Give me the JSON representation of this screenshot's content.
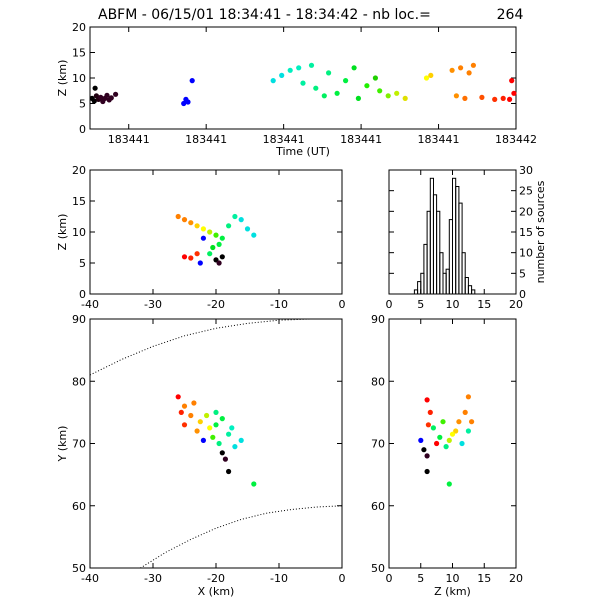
{
  "header": {
    "title": "ABFM - 06/15/01 18:34:41 - 18:34:42 - nb loc.=",
    "count": "264"
  },
  "chart_data": [
    {
      "id": "time-panel",
      "type": "scatter",
      "xlabel": "Time (UT)",
      "ylabel": "Z (km)",
      "ylim": [
        0,
        20
      ],
      "yticks": [
        "0",
        "5",
        "10",
        "15",
        "20"
      ],
      "xticks": [
        "183441",
        "183441",
        "183441",
        "183441",
        "183441",
        "183442"
      ],
      "points": [
        {
          "x": 0.005,
          "y": 6.0,
          "c": "#000000"
        },
        {
          "x": 0.01,
          "y": 5.5,
          "c": "#000000"
        },
        {
          "x": 0.015,
          "y": 6.5,
          "c": "#200010"
        },
        {
          "x": 0.02,
          "y": 5.8,
          "c": "#200010"
        },
        {
          "x": 0.025,
          "y": 6.2,
          "c": "#300020"
        },
        {
          "x": 0.03,
          "y": 5.4,
          "c": "#300020"
        },
        {
          "x": 0.035,
          "y": 6.0,
          "c": "#300020"
        },
        {
          "x": 0.04,
          "y": 6.6,
          "c": "#300020"
        },
        {
          "x": 0.045,
          "y": 5.7,
          "c": "#300020"
        },
        {
          "x": 0.05,
          "y": 6.1,
          "c": "#300020"
        },
        {
          "x": 0.012,
          "y": 8.0,
          "c": "#000000"
        },
        {
          "x": 0.06,
          "y": 6.8,
          "c": "#300020"
        },
        {
          "x": 0.22,
          "y": 5.0,
          "c": "#0000ff"
        },
        {
          "x": 0.225,
          "y": 5.8,
          "c": "#0000ff"
        },
        {
          "x": 0.23,
          "y": 5.3,
          "c": "#0000ff"
        },
        {
          "x": 0.24,
          "y": 9.5,
          "c": "#0000ff"
        },
        {
          "x": 0.43,
          "y": 9.5,
          "c": "#00e0e0"
        },
        {
          "x": 0.45,
          "y": 10.5,
          "c": "#00e0e0"
        },
        {
          "x": 0.47,
          "y": 11.5,
          "c": "#00f0c0"
        },
        {
          "x": 0.49,
          "y": 12.0,
          "c": "#00f0c0"
        },
        {
          "x": 0.5,
          "y": 9.0,
          "c": "#00f0a0"
        },
        {
          "x": 0.52,
          "y": 12.5,
          "c": "#00f0a0"
        },
        {
          "x": 0.53,
          "y": 8.0,
          "c": "#00f080"
        },
        {
          "x": 0.55,
          "y": 6.5,
          "c": "#00f060"
        },
        {
          "x": 0.56,
          "y": 11.0,
          "c": "#00f080"
        },
        {
          "x": 0.58,
          "y": 7.0,
          "c": "#00f040"
        },
        {
          "x": 0.6,
          "y": 9.5,
          "c": "#00f040"
        },
        {
          "x": 0.62,
          "y": 12.0,
          "c": "#00e020"
        },
        {
          "x": 0.63,
          "y": 6.0,
          "c": "#00e020"
        },
        {
          "x": 0.65,
          "y": 8.5,
          "c": "#20f000"
        },
        {
          "x": 0.67,
          "y": 10.0,
          "c": "#20d000"
        },
        {
          "x": 0.68,
          "y": 7.5,
          "c": "#40f000"
        },
        {
          "x": 0.7,
          "y": 6.5,
          "c": "#80f000"
        },
        {
          "x": 0.72,
          "y": 7.0,
          "c": "#c0f000"
        },
        {
          "x": 0.74,
          "y": 6.0,
          "c": "#e0e000"
        },
        {
          "x": 0.79,
          "y": 10.0,
          "c": "#ffff00"
        },
        {
          "x": 0.8,
          "y": 10.5,
          "c": "#ffd000"
        },
        {
          "x": 0.85,
          "y": 11.5,
          "c": "#ff9000"
        },
        {
          "x": 0.87,
          "y": 12.0,
          "c": "#ff8000"
        },
        {
          "x": 0.89,
          "y": 11.0,
          "c": "#ff8000"
        },
        {
          "x": 0.9,
          "y": 12.5,
          "c": "#ff8000"
        },
        {
          "x": 0.86,
          "y": 6.5,
          "c": "#ff9000"
        },
        {
          "x": 0.88,
          "y": 6.0,
          "c": "#ff7000"
        },
        {
          "x": 0.92,
          "y": 6.2,
          "c": "#ff5000"
        },
        {
          "x": 0.95,
          "y": 5.8,
          "c": "#ff3000"
        },
        {
          "x": 0.97,
          "y": 6.0,
          "c": "#ff2000"
        },
        {
          "x": 0.99,
          "y": 9.5,
          "c": "#ff0000"
        },
        {
          "x": 0.995,
          "y": 7.0,
          "c": "#ff0000"
        },
        {
          "x": 0.985,
          "y": 5.8,
          "c": "#ff0000"
        }
      ]
    },
    {
      "id": "xz-panel",
      "type": "scatter",
      "ylabel": "Z (km)",
      "xlim": [
        -40,
        0
      ],
      "ylim": [
        0,
        20
      ],
      "xticks": [
        "-40",
        "-30",
        "-20",
        "-10",
        "0"
      ],
      "yticks": [
        "0",
        "5",
        "10",
        "15",
        "20"
      ],
      "points": [
        {
          "x": -26,
          "y": 12.5,
          "c": "#ff8000"
        },
        {
          "x": -25,
          "y": 12.0,
          "c": "#ff8000"
        },
        {
          "x": -24,
          "y": 11.5,
          "c": "#ff9000"
        },
        {
          "x": -23,
          "y": 11.0,
          "c": "#ffd000"
        },
        {
          "x": -22,
          "y": 10.5,
          "c": "#ffff00"
        },
        {
          "x": -21,
          "y": 10.0,
          "c": "#c0f000"
        },
        {
          "x": -20,
          "y": 9.5,
          "c": "#40f000"
        },
        {
          "x": -19,
          "y": 9.0,
          "c": "#00f040"
        },
        {
          "x": -18,
          "y": 11.0,
          "c": "#00f080"
        },
        {
          "x": -17,
          "y": 12.5,
          "c": "#00f0a0"
        },
        {
          "x": -16,
          "y": 12.0,
          "c": "#00e0e0"
        },
        {
          "x": -19.5,
          "y": 8.0,
          "c": "#00f040"
        },
        {
          "x": -20.5,
          "y": 7.5,
          "c": "#00e020"
        },
        {
          "x": -21,
          "y": 6.5,
          "c": "#00f060"
        },
        {
          "x": -22,
          "y": 9.0,
          "c": "#0000ff"
        },
        {
          "x": -22.5,
          "y": 5.0,
          "c": "#0000ff"
        },
        {
          "x": -25,
          "y": 6.0,
          "c": "#ff0000"
        },
        {
          "x": -24,
          "y": 5.8,
          "c": "#ff2000"
        },
        {
          "x": -23,
          "y": 6.5,
          "c": "#ff3000"
        },
        {
          "x": -20,
          "y": 5.5,
          "c": "#000000"
        },
        {
          "x": -19.5,
          "y": 5.0,
          "c": "#300020"
        },
        {
          "x": -19,
          "y": 6.0,
          "c": "#000000"
        },
        {
          "x": -14,
          "y": 9.5,
          "c": "#00e0e0"
        },
        {
          "x": -15,
          "y": 10.5,
          "c": "#00e0e0"
        }
      ]
    },
    {
      "id": "histogram",
      "type": "bar",
      "ylabel": "number of sources",
      "xlim": [
        0,
        20
      ],
      "ylim": [
        0,
        30
      ],
      "xticks": [
        "0",
        "5",
        "10",
        "15",
        "20"
      ],
      "yticks": [
        "0",
        "5",
        "10",
        "15",
        "20",
        "25",
        "30"
      ],
      "bin_start": 4.0,
      "bin_width": 0.5,
      "values": [
        1,
        3,
        5,
        12,
        20,
        28,
        24,
        20,
        10,
        5,
        6,
        18,
        28,
        26,
        22,
        10,
        4,
        2,
        1,
        0
      ]
    },
    {
      "id": "xy-panel",
      "type": "scatter",
      "xlabel": "X (km)",
      "ylabel": "Y (km)",
      "xlim": [
        -40,
        0
      ],
      "ylim": [
        50,
        90
      ],
      "xticks": [
        "-40",
        "-30",
        "-20",
        "-10",
        "0"
      ],
      "yticks": [
        "50",
        "60",
        "70",
        "80",
        "90"
      ],
      "points": [
        {
          "x": -26,
          "y": 77.5,
          "c": "#ff0000"
        },
        {
          "x": -25.5,
          "y": 75.0,
          "c": "#ff2000"
        },
        {
          "x": -25,
          "y": 73.0,
          "c": "#ff3000"
        },
        {
          "x": -24,
          "y": 74.5,
          "c": "#ff8000"
        },
        {
          "x": -23,
          "y": 72.0,
          "c": "#ff9000"
        },
        {
          "x": -22.5,
          "y": 73.5,
          "c": "#ffd000"
        },
        {
          "x": -22,
          "y": 70.5,
          "c": "#0000ff"
        },
        {
          "x": -21,
          "y": 72.5,
          "c": "#ffff00"
        },
        {
          "x": -20.5,
          "y": 71.0,
          "c": "#40f000"
        },
        {
          "x": -20,
          "y": 73.0,
          "c": "#00f040"
        },
        {
          "x": -19.5,
          "y": 70.0,
          "c": "#00f080"
        },
        {
          "x": -19,
          "y": 74.0,
          "c": "#00f040"
        },
        {
          "x": -18,
          "y": 71.5,
          "c": "#00f0a0"
        },
        {
          "x": -17,
          "y": 69.5,
          "c": "#00e0e0"
        },
        {
          "x": -16,
          "y": 70.5,
          "c": "#00e0e0"
        },
        {
          "x": -17.5,
          "y": 72.5,
          "c": "#00f0c0"
        },
        {
          "x": -19,
          "y": 68.5,
          "c": "#000000"
        },
        {
          "x": -18.5,
          "y": 67.5,
          "c": "#300020"
        },
        {
          "x": -18,
          "y": 65.5,
          "c": "#000000"
        },
        {
          "x": -14,
          "y": 63.5,
          "c": "#00f040"
        },
        {
          "x": -25,
          "y": 76.0,
          "c": "#ff8000"
        },
        {
          "x": -23.5,
          "y": 76.5,
          "c": "#ff8000"
        },
        {
          "x": -21.5,
          "y": 74.5,
          "c": "#c0f000"
        },
        {
          "x": -20,
          "y": 75.0,
          "c": "#00f080"
        }
      ],
      "curves": [
        {
          "x": [
            -40,
            -35,
            -30,
            -25,
            -20,
            -15,
            -10,
            -5,
            0
          ],
          "y": [
            81,
            83.5,
            85.6,
            87.3,
            88.5,
            89.3,
            89.8,
            90.0,
            90.0
          ]
        },
        {
          "x": [
            -32,
            -28,
            -24,
            -20,
            -16,
            -12,
            -8,
            -4,
            0
          ],
          "y": [
            50,
            52.5,
            54.6,
            56.4,
            57.8,
            58.8,
            59.4,
            59.8,
            60.0
          ]
        }
      ]
    },
    {
      "id": "zy-panel",
      "type": "scatter",
      "xlabel": "Z (km)",
      "xlim": [
        0,
        20
      ],
      "ylim": [
        50,
        90
      ],
      "xticks": [
        "0",
        "5",
        "10",
        "15",
        "20"
      ],
      "yticks": [
        "50",
        "60",
        "70",
        "80",
        "90"
      ],
      "points": [
        {
          "x": 6.0,
          "y": 77.0,
          "c": "#ff0000"
        },
        {
          "x": 6.5,
          "y": 75.0,
          "c": "#ff2000"
        },
        {
          "x": 6.2,
          "y": 73.0,
          "c": "#ff3000"
        },
        {
          "x": 12.5,
          "y": 77.5,
          "c": "#ff8000"
        },
        {
          "x": 12.0,
          "y": 75.0,
          "c": "#ff8000"
        },
        {
          "x": 11.0,
          "y": 73.5,
          "c": "#ff9000"
        },
        {
          "x": 10.5,
          "y": 72.0,
          "c": "#ffd000"
        },
        {
          "x": 10.0,
          "y": 71.5,
          "c": "#ffff00"
        },
        {
          "x": 9.5,
          "y": 70.5,
          "c": "#c0f000"
        },
        {
          "x": 8.0,
          "y": 71.0,
          "c": "#00f040"
        },
        {
          "x": 9.0,
          "y": 69.5,
          "c": "#00f080"
        },
        {
          "x": 11.5,
          "y": 70.0,
          "c": "#00e0e0"
        },
        {
          "x": 12.5,
          "y": 72.0,
          "c": "#00f0a0"
        },
        {
          "x": 7.0,
          "y": 72.5,
          "c": "#00f060"
        },
        {
          "x": 5.0,
          "y": 70.5,
          "c": "#0000ff"
        },
        {
          "x": 5.5,
          "y": 69.0,
          "c": "#000000"
        },
        {
          "x": 6.0,
          "y": 68.0,
          "c": "#300020"
        },
        {
          "x": 6.0,
          "y": 65.5,
          "c": "#000000"
        },
        {
          "x": 9.5,
          "y": 63.5,
          "c": "#00f040"
        },
        {
          "x": 8.5,
          "y": 73.5,
          "c": "#40f000"
        },
        {
          "x": 7.5,
          "y": 70.0,
          "c": "#ff0000"
        },
        {
          "x": 13.0,
          "y": 73.5,
          "c": "#ff8000"
        }
      ]
    }
  ]
}
